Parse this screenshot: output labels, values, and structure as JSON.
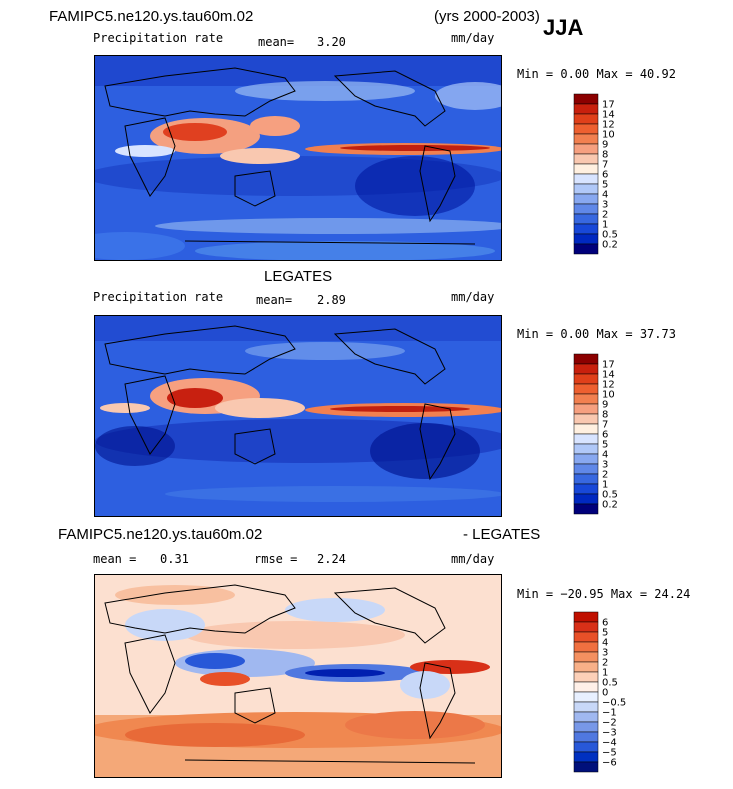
{
  "header": {
    "run_name": "FAMIPC5.ne120.ys.tau60m.02",
    "years": "(yrs 2000-2003)",
    "season": "JJA"
  },
  "panels": [
    {
      "title": "",
      "variable": "Precipitation rate",
      "mean_label": "mean=",
      "mean_value": "3.20",
      "units": "mm/day",
      "minmax": "Min =   0.00 Max =  40.92"
    },
    {
      "title": "LEGATES",
      "variable": "Precipitation rate",
      "mean_label": "mean=",
      "mean_value": "2.89",
      "units": "mm/day",
      "minmax": "Min =   0.00 Max =  37.73"
    },
    {
      "title_left": "FAMIPC5.ne120.ys.tau60m.02",
      "title_right": "- LEGATES",
      "mean_label": "mean =",
      "mean_value": "0.31",
      "rmse_label": "rmse =",
      "rmse_value": "2.24",
      "units": "mm/day",
      "minmax": "Min = −20.95 Max =  24.24"
    }
  ],
  "chart_data": [
    {
      "type": "heatmap",
      "title": "FAMIPC5.ne120.ys.tau60m.02",
      "subtitle": "Precipitation rate",
      "units": "mm/day",
      "mean": 3.2,
      "min": 0.0,
      "max": 40.92,
      "colorbar_levels": [
        "17",
        "14",
        "12",
        "10",
        "9",
        "8",
        "7",
        "6",
        "5",
        "4",
        "3",
        "2",
        "1",
        "0.5",
        "0.2"
      ],
      "colorbar_colors": [
        "#8b0000",
        "#c8200d",
        "#e0401a",
        "#ee6030",
        "#f28050",
        "#f6a080",
        "#f9c8b0",
        "#fff0e0",
        "#d8e4ff",
        "#b0c8f8",
        "#88a8f0",
        "#6088e8",
        "#3868e0",
        "#1848d8",
        "#0028c0",
        "#00007a"
      ]
    },
    {
      "type": "heatmap",
      "title": "LEGATES",
      "subtitle": "Precipitation rate",
      "units": "mm/day",
      "mean": 2.89,
      "min": 0.0,
      "max": 37.73,
      "colorbar_levels": [
        "17",
        "14",
        "12",
        "10",
        "9",
        "8",
        "7",
        "6",
        "5",
        "4",
        "3",
        "2",
        "1",
        "0.5",
        "0.2"
      ],
      "colorbar_colors": [
        "#8b0000",
        "#c8200d",
        "#e0401a",
        "#ee6030",
        "#f28050",
        "#f6a080",
        "#f9c8b0",
        "#fff0e0",
        "#d8e4ff",
        "#b0c8f8",
        "#88a8f0",
        "#6088e8",
        "#3868e0",
        "#1848d8",
        "#0028c0",
        "#00007a"
      ]
    },
    {
      "type": "heatmap",
      "title": "FAMIPC5.ne120.ys.tau60m.02 - LEGATES",
      "units": "mm/day",
      "mean": 0.31,
      "rmse": 2.24,
      "min": -20.95,
      "max": 24.24,
      "colorbar_levels": [
        "6",
        "5",
        "4",
        "3",
        "2",
        "1",
        "0.5",
        "0",
        "−0.5",
        "−1",
        "−2",
        "−3",
        "−4",
        "−5",
        "−6"
      ],
      "colorbar_colors": [
        "#c01000",
        "#d83018",
        "#e85028",
        "#f07040",
        "#f49060",
        "#f8b088",
        "#fcd0b8",
        "#fff0e8",
        "#e8f0ff",
        "#c8d8f8",
        "#a0b8f0",
        "#7898e8",
        "#5078e0",
        "#2858d8",
        "#0030c0",
        "#00107a"
      ]
    }
  ]
}
